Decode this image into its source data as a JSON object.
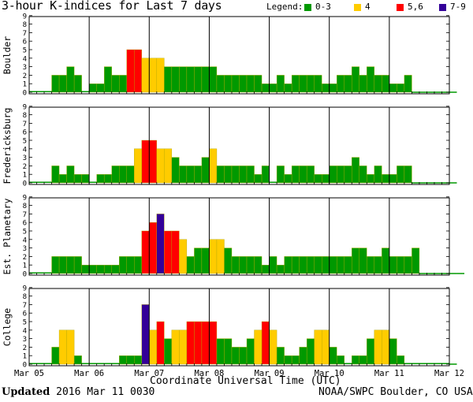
{
  "title": "3-hour K-indices for Last 7 days",
  "legend": {
    "label": "Legend:",
    "items": [
      {
        "name": "0-3",
        "color": "#009900"
      },
      {
        "name": "4",
        "color": "#ffcc00"
      },
      {
        "name": "5,6",
        "color": "#ff0000"
      },
      {
        "name": "7-9",
        "color": "#330099"
      }
    ]
  },
  "footer": {
    "updated_label": "Updated",
    "updated_value": " 2016 Mar 11 0030",
    "source": "NOAA/SWPC Boulder, CO USA"
  },
  "chart_data": {
    "type": "bar",
    "xlabel": "Coordinate Universal Time (UTC)",
    "x_tick_labels": [
      "Mar 05",
      "Mar 06",
      "Mar 07",
      "Mar 08",
      "Mar 09",
      "Mar 10",
      "Mar 11",
      "Mar 12"
    ],
    "ylim": [
      0,
      9
    ],
    "y_ticks": [
      0,
      1,
      2,
      3,
      4,
      5,
      6,
      7,
      8,
      9
    ],
    "bins_per_day": 8,
    "bin_hours": 3,
    "color_rule": {
      "0-3": "#009900",
      "4": "#ffcc00",
      "5-6": "#ff0000",
      "7-9": "#330099"
    },
    "panels": [
      {
        "name": "Boulder",
        "values": [
          0,
          0,
          0,
          2,
          2,
          3,
          2,
          0,
          1,
          1,
          3,
          2,
          2,
          5,
          5,
          4,
          4,
          4,
          3,
          3,
          3,
          3,
          3,
          3,
          3,
          2,
          2,
          2,
          2,
          2,
          2,
          1,
          1,
          2,
          1,
          2,
          2,
          2,
          2,
          1,
          1,
          2,
          2,
          3,
          2,
          3,
          2,
          2,
          1,
          1,
          2,
          null,
          null,
          null,
          null,
          null,
          null
        ]
      },
      {
        "name": "Fredericksburg",
        "values": [
          0,
          0,
          0,
          2,
          1,
          2,
          1,
          1,
          0,
          1,
          1,
          2,
          2,
          2,
          4,
          5,
          5,
          4,
          4,
          3,
          2,
          2,
          2,
          3,
          4,
          2,
          2,
          2,
          2,
          2,
          1,
          2,
          0,
          2,
          1,
          2,
          2,
          2,
          1,
          1,
          2,
          2,
          2,
          3,
          2,
          1,
          2,
          1,
          1,
          2,
          2,
          null,
          null,
          null,
          null,
          null,
          null
        ]
      },
      {
        "name": "Est. Planetary",
        "values": [
          0,
          0,
          0,
          2,
          2,
          2,
          2,
          1,
          1,
          1,
          1,
          1,
          2,
          2,
          2,
          5,
          6,
          7,
          5,
          5,
          4,
          2,
          3,
          3,
          4,
          4,
          3,
          2,
          2,
          2,
          2,
          1,
          2,
          1,
          2,
          2,
          2,
          2,
          2,
          2,
          2,
          2,
          2,
          3,
          3,
          2,
          2,
          3,
          2,
          2,
          2,
          3,
          null,
          null,
          null,
          null,
          null,
          null
        ]
      },
      {
        "name": "College",
        "values": [
          0,
          0,
          0,
          2,
          4,
          4,
          1,
          0,
          0,
          0,
          0,
          0,
          1,
          1,
          1,
          7,
          4,
          5,
          3,
          4,
          4,
          5,
          5,
          5,
          5,
          3,
          3,
          2,
          2,
          3,
          4,
          5,
          4,
          2,
          1,
          1,
          2,
          3,
          4,
          4,
          2,
          1,
          0,
          1,
          1,
          3,
          4,
          4,
          3,
          1,
          0,
          0,
          0,
          0,
          0,
          0,
          null
        ]
      }
    ]
  }
}
